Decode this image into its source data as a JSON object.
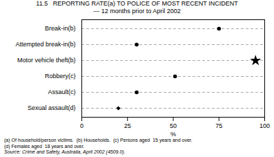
{
  "chart_data": {
    "type": "dot",
    "title": "11.5   REPORTING RATE(a) TO POLICE OF MOST RECENT INCIDENT",
    "subtitle": "— 12 months prior to April 2002",
    "categories": [
      "Break-in(b)",
      "Attempted break-in(b)",
      "Motor vehicle theft(b)",
      "Robbery(c)",
      "Assault(c)",
      "Sexual assault(d)"
    ],
    "values": [
      75,
      30,
      95,
      51,
      30,
      20
    ],
    "markers": [
      "circle",
      "circle",
      "star",
      "circle",
      "circle",
      "diamond"
    ],
    "color": "#000000",
    "xlabel": "%",
    "xlim": [
      0,
      100
    ],
    "xticks": [
      0,
      25,
      50,
      75,
      100
    ],
    "grid": true,
    "footnotes": [
      "(a) Of household/person victims.  (b) Households.  (c) Persons aged  15 years and over.",
      "(d) Females aged  18 years and over."
    ],
    "source": "Source: Crime and Safety, Australia, April 2002 (4509.0)."
  }
}
